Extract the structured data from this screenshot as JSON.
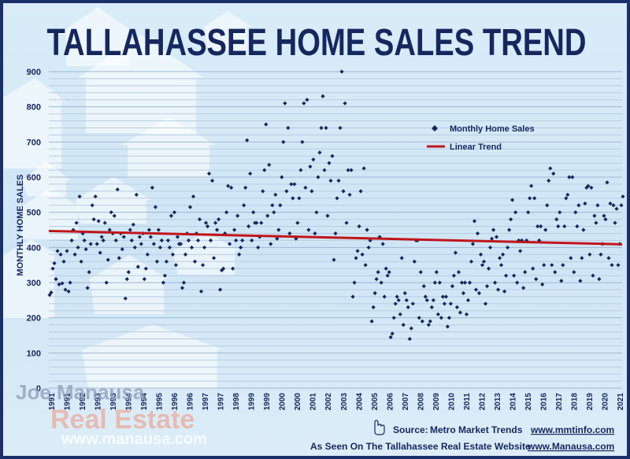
{
  "title": "TALLAHASSEE HOME SALES TREND",
  "legend": {
    "monthly": "Monthly Home Sales",
    "trend": "Linear Trend"
  },
  "watermark": {
    "line1": "Joe Manausa",
    "line2": "Real Estate",
    "line3": "www.manausa.com"
  },
  "footer": {
    "source_label": "Source:",
    "source_name": "Metro Market Trends",
    "source_url": "www.mmtinfo.com",
    "seen_label": "As Seen On The Tallahassee Real Estate Website",
    "seen_url": "www.Manausa.com"
  },
  "colors": {
    "background": "#d9ecf8",
    "frame": "#1b2f6b",
    "title": "#16275e",
    "points": "#16275e",
    "trend": "#c0161b"
  },
  "chart_data": {
    "type": "scatter",
    "title": "TALLAHASSEE HOME SALES TREND",
    "xlabel": "",
    "ylabel": "MONTHLY HOME SALES",
    "ylim": [
      0,
      900
    ],
    "yticks": [
      0,
      100,
      200,
      300,
      400,
      500,
      600,
      700,
      800,
      900
    ],
    "xlim": [
      1991,
      2021.25
    ],
    "xticks": [
      "1991",
      "1991",
      "1992",
      "1993",
      "1993",
      "1994",
      "1994",
      "1995",
      "1996",
      "1996",
      "1997",
      "1997",
      "1998",
      "1999",
      "1999",
      "2000",
      "2000",
      "2001",
      "2002",
      "2003",
      "2004",
      "2005",
      "2006",
      "2007",
      "2008",
      "2009",
      "2010",
      "2011",
      "2012",
      "2013",
      "2014",
      "2015",
      "2016",
      "2017",
      "2018",
      "2019",
      "2020",
      "2021"
    ],
    "grid": true,
    "legend_position": "top-right",
    "series": [
      {
        "name": "Monthly Home Sales",
        "marker": "diamond",
        "annual_points": [
          {
            "year": 1991,
            "values": [
              265,
              272,
              340,
              355,
              310,
              390,
              295,
              380,
              298,
              360,
              280,
              390
            ]
          },
          {
            "year": 1992,
            "values": [
              275,
              300,
              420,
              450,
              380,
              470,
              400,
              545,
              360,
              440,
              420,
              395
            ]
          },
          {
            "year": 1993,
            "values": [
              285,
              330,
              410,
              520,
              480,
              545,
              410,
              475,
              385,
              430,
              420,
              470
            ]
          },
          {
            "year": 1994,
            "values": [
              300,
              365,
              450,
              500,
              440,
              490,
              420,
              565,
              370,
              440,
              395,
              430
            ]
          },
          {
            "year": 1995,
            "values": [
              255,
              310,
              330,
              450,
              420,
              465,
              400,
              550,
              345,
              430,
              410,
              440
            ]
          },
          {
            "year": 1996,
            "values": [
              310,
              340,
              380,
              450,
              430,
              570,
              410,
              515,
              360,
              450,
              400,
              420
            ]
          },
          {
            "year": 1997,
            "values": [
              300,
              320,
              360,
              420,
              400,
              490,
              380,
              500,
              350,
              430,
              410,
              410
            ]
          },
          {
            "year": 1998,
            "values": [
              285,
              300,
              380,
              440,
              420,
              515,
              400,
              545,
              360,
              440,
              420,
              480
            ]
          },
          {
            "year": 1999,
            "values": [
              275,
              350,
              400,
              470,
              460,
              610,
              420,
              590,
              370,
              470,
              450,
              480
            ]
          },
          {
            "year": 2000,
            "values": [
              280,
              335,
              340,
              440,
              500,
              575,
              410,
              570,
              340,
              450,
              420,
              490
            ]
          },
          {
            "year": 2001,
            "values": [
              380,
              400,
              420,
              520,
              570,
              705,
              460,
              610,
              420,
              500,
              470,
              470
            ]
          },
          {
            "year": 2002,
            "values": [
              400,
              430,
              470,
              560,
              620,
              750,
              490,
              635,
              410,
              520,
              500,
              550
            ]
          },
          {
            "year": 2003,
            "values": [
              425,
              450,
              520,
              600,
              700,
              810,
              560,
              740,
              440,
              580,
              540,
              580
            ]
          },
          {
            "year": 2004,
            "values": [
              425,
              470,
              540,
              620,
              700,
              810,
              570,
              820,
              450,
              630,
              560,
              650
            ]
          },
          {
            "year": 2005,
            "values": [
              440,
              500,
              600,
              670,
              740,
              830,
              620,
              740,
              490,
              640,
              590,
              660
            ]
          },
          {
            "year": 2006,
            "values": [
              365,
              440,
              540,
              590,
              740,
              900,
              560,
              810,
              470,
              620,
              550,
              620
            ]
          },
          {
            "year": 2007,
            "values": [
              260,
              300,
              370,
              390,
              460,
              560,
              380,
              625,
              350,
              450,
              400,
              420
            ]
          },
          {
            "year": 2008,
            "values": [
              190,
              230,
              270,
              310,
              330,
              430,
              300,
              410,
              260,
              340,
              320,
              330
            ]
          },
          {
            "year": 2009,
            "values": [
              145,
              155,
              200,
              240,
              260,
              250,
              210,
              370,
              180,
              270,
              250,
              230
            ]
          },
          {
            "year": 2010,
            "values": [
              140,
              170,
              240,
              360,
              420,
              420,
              200,
              330,
              190,
              290,
              260,
              250
            ]
          },
          {
            "year": 2011,
            "values": [
              180,
              190,
              230,
              250,
              300,
              330,
              210,
              300,
              200,
              260,
              240,
              260
            ]
          },
          {
            "year": 2012,
            "values": [
              175,
              200,
              240,
              290,
              320,
              385,
              230,
              330,
              215,
              300,
              270,
              300
            ]
          },
          {
            "year": 2013,
            "values": [
              210,
              250,
              300,
              360,
              410,
              475,
              280,
              440,
              270,
              380,
              350,
              360
            ]
          },
          {
            "year": 2014,
            "values": [
              240,
              290,
              340,
              400,
              425,
              450,
              300,
              430,
              280,
              370,
              350,
              380
            ]
          },
          {
            "year": 2015,
            "values": [
              275,
              320,
              400,
              450,
              480,
              535,
              320,
              500,
              300,
              420,
              390,
              420
            ]
          },
          {
            "year": 2016,
            "values": [
              285,
              330,
              420,
              500,
              540,
              575,
              340,
              540,
              310,
              460,
              420,
              460
            ]
          },
          {
            "year": 2017,
            "values": [
              295,
              350,
              450,
              520,
              590,
              625,
              350,
              610,
              330,
              480,
              460,
              500
            ]
          },
          {
            "year": 2018,
            "values": [
              305,
              350,
              460,
              540,
              550,
              600,
              370,
              600,
              330,
              500,
              460,
              520
            ]
          },
          {
            "year": 2019,
            "values": [
              305,
              370,
              450,
              525,
              570,
              575,
              380,
              570,
              320,
              490,
              470,
              520
            ]
          },
          {
            "year": 2020,
            "values": [
              310,
              380,
              410,
              490,
              480,
              585,
              370,
              525,
              350,
              520,
              470,
              510
            ]
          },
          {
            "year": 2021,
            "values": [
              350,
              410,
              520,
              545
            ]
          }
        ]
      },
      {
        "name": "Linear Trend",
        "type": "line",
        "x": [
          1991,
          2021.25
        ],
        "values": [
          447,
          409
        ]
      }
    ]
  }
}
